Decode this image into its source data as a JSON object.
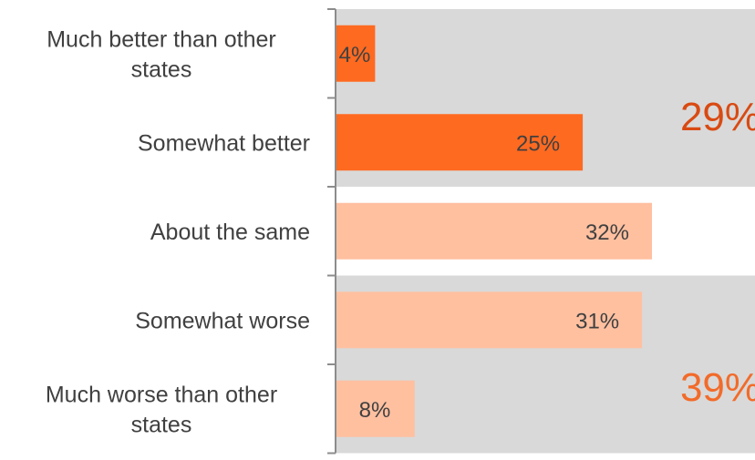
{
  "chart_data": {
    "type": "bar",
    "orientation": "horizontal",
    "categories": [
      [
        "Much better than other",
        "states"
      ],
      [
        "Somewhat better"
      ],
      [
        "About the same"
      ],
      [
        "Somewhat worse"
      ],
      [
        "Much worse than other",
        "states"
      ]
    ],
    "values": [
      4,
      25,
      32,
      31,
      8
    ],
    "value_labels": [
      "4%",
      "25%",
      "32%",
      "31%",
      "8%"
    ],
    "xlim": [
      0,
      42
    ],
    "bar_colors": [
      "#ff6a21",
      "#ff6a21",
      "#ffc0a0",
      "#ffc0a0",
      "#ffc0a0"
    ],
    "group_summaries": [
      {
        "label": "29%",
        "categories": [
          0,
          1
        ],
        "color": "#d94a12"
      },
      {
        "label": "39%",
        "categories": [
          3,
          4
        ],
        "color": "#f26b2a"
      }
    ],
    "band_color": "#d9d9d9",
    "grid": false
  }
}
